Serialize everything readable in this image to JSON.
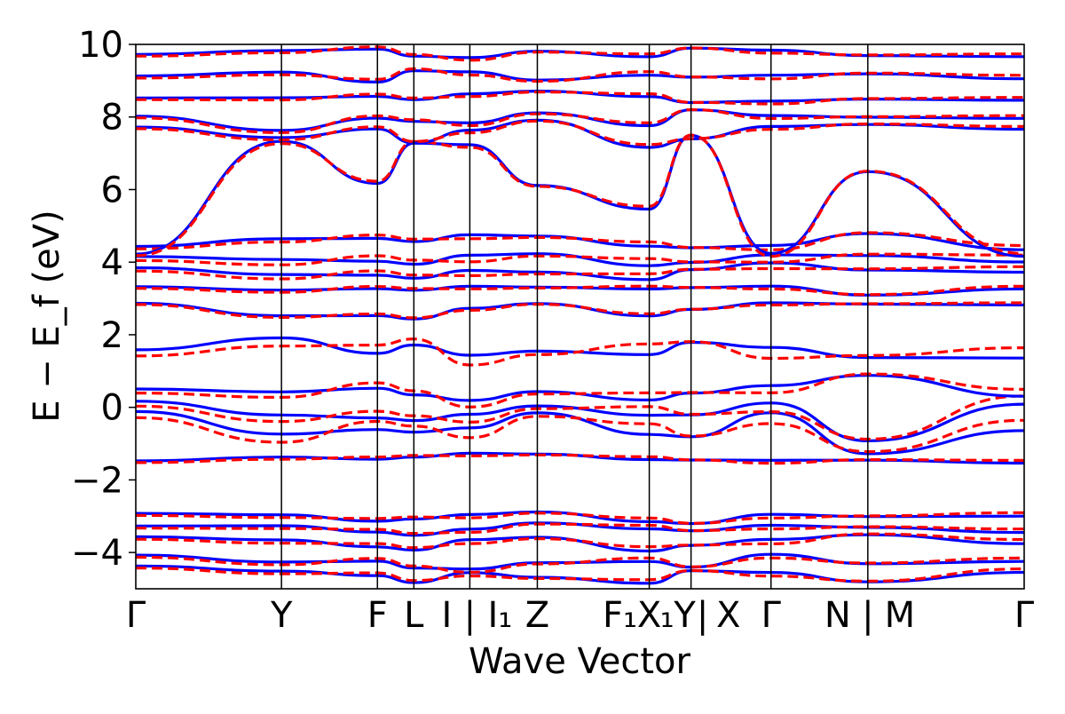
{
  "chart_data": {
    "type": "line",
    "title": "",
    "xlabel": "Wave Vector",
    "ylabel": "E − E_f (eV)",
    "ylim": [
      -5,
      10
    ],
    "yticks": [
      10,
      8,
      6,
      4,
      2,
      0,
      -2,
      -4
    ],
    "ytick_labels": [
      "10",
      "8",
      "6",
      "4",
      "2",
      "0",
      "−2",
      "−4"
    ],
    "grid": false,
    "legend": "none",
    "kpath_segment_fractions": [
      0,
      0.164,
      0.272,
      0.313,
      0.376,
      0.452,
      0.578,
      0.625,
      0.715,
      0.824,
      1.0
    ],
    "xtick_labels": [
      {
        "label": "Γ",
        "pos": 0.0
      },
      {
        "label": "Y",
        "pos": 0.164
      },
      {
        "label": "F",
        "pos": 0.272
      },
      {
        "label": "L",
        "pos": 0.313
      },
      {
        "label": "I",
        "pos": 0.35
      },
      {
        "label": "|",
        "pos": 0.376
      },
      {
        "label": "I₁",
        "pos": 0.41
      },
      {
        "label": "Z",
        "pos": 0.452
      },
      {
        "label": "F₁",
        "pos": 0.545
      },
      {
        "label": "X",
        "pos": 0.578
      },
      {
        "label": "₁",
        "pos": 0.598
      },
      {
        "label": "Y",
        "pos": 0.618
      },
      {
        "label": "|",
        "pos": 0.638
      },
      {
        "label": "X",
        "pos": 0.667
      },
      {
        "label": "Γ",
        "pos": 0.715
      },
      {
        "label": "N",
        "pos": 0.79
      },
      {
        "label": "|",
        "pos": 0.824
      },
      {
        "label": "M",
        "pos": 0.86
      },
      {
        "label": "Γ",
        "pos": 1.0
      }
    ],
    "series_styles": [
      {
        "name": "",
        "color": "#0000ff",
        "dash": "solid"
      },
      {
        "name": "",
        "color": "#ff0000",
        "dash": "dashed"
      }
    ],
    "bands": [
      {
        "profile": [
          -4.4,
          -4.55,
          -4.6,
          -4.8,
          -4.6,
          -4.7,
          -4.8,
          -4.5,
          -4.6,
          -4.8,
          -4.5
        ],
        "split": 0.05
      },
      {
        "profile": [
          -4.1,
          -4.3,
          -4.2,
          -4.4,
          -4.5,
          -4.3,
          -4.2,
          -4.4,
          -4.1,
          -4.3,
          -4.2
        ],
        "split": 0.05
      },
      {
        "profile": [
          -3.6,
          -3.7,
          -3.8,
          -3.9,
          -3.7,
          -3.6,
          -3.9,
          -3.8,
          -3.7,
          -3.5,
          -3.7
        ],
        "split": 0.06
      },
      {
        "profile": [
          -3.3,
          -3.3,
          -3.4,
          -3.5,
          -3.4,
          -3.2,
          -3.3,
          -3.4,
          -3.3,
          -3.3,
          -3.4
        ],
        "split": 0.05
      },
      {
        "profile": [
          -2.95,
          -3.0,
          -3.1,
          -3.05,
          -3.0,
          -2.9,
          -3.1,
          -3.2,
          -3.0,
          -3.0,
          -2.95
        ],
        "split": 0.05
      },
      {
        "profile": [
          -1.5,
          -1.4,
          -1.4,
          -1.35,
          -1.3,
          -1.3,
          -1.4,
          -1.45,
          -1.5,
          -1.45,
          -1.5
        ],
        "split": 0.04
      },
      {
        "profile": [
          -0.2,
          -0.85,
          -0.5,
          -0.6,
          -0.7,
          -0.2,
          -0.6,
          -0.8,
          -0.3,
          -1.25,
          -0.5
        ],
        "split": 0.15
      },
      {
        "profile": [
          0.1,
          -0.3,
          -0.2,
          -0.3,
          -0.3,
          0.0,
          -0.1,
          -0.2,
          0.0,
          -0.9,
          0.2
        ],
        "split": 0.12
      },
      {
        "profile": [
          0.45,
          0.35,
          0.6,
          0.4,
          0.1,
          0.4,
          0.3,
          0.4,
          0.5,
          0.9,
          0.4
        ],
        "split": 0.1
      },
      {
        "profile": [
          1.5,
          1.8,
          1.6,
          1.8,
          1.3,
          1.5,
          1.6,
          1.8,
          1.5,
          1.4,
          1.5
        ],
        "split": 0.15
      },
      {
        "profile": [
          2.85,
          2.5,
          2.55,
          2.45,
          2.7,
          2.85,
          2.55,
          2.7,
          2.85,
          2.85,
          2.85
        ],
        "split": 0.03
      },
      {
        "profile": [
          3.3,
          3.2,
          3.3,
          3.25,
          3.3,
          3.3,
          3.3,
          3.3,
          3.3,
          3.1,
          3.3
        ],
        "split": 0.04
      },
      {
        "profile": [
          3.8,
          3.6,
          3.7,
          3.6,
          3.7,
          3.7,
          3.6,
          3.8,
          3.9,
          3.8,
          3.8
        ],
        "split": 0.08
      },
      {
        "profile": [
          4.1,
          4.0,
          4.1,
          4.0,
          4.1,
          4.2,
          4.0,
          4.0,
          4.1,
          4.2,
          4.1
        ],
        "split": 0.1
      },
      {
        "profile": [
          4.4,
          4.6,
          4.7,
          4.6,
          4.7,
          4.7,
          4.5,
          4.4,
          4.4,
          4.8,
          4.4
        ],
        "split": 0.06
      },
      {
        "profile": [
          4.2,
          7.3,
          6.2,
          7.3,
          7.2,
          6.1,
          5.5,
          7.5,
          4.2,
          6.5,
          4.2
        ],
        "split": 0.04
      },
      {
        "profile": [
          7.7,
          7.4,
          7.7,
          7.3,
          7.6,
          7.9,
          7.2,
          7.4,
          7.7,
          7.8,
          7.7
        ],
        "split": 0.04
      },
      {
        "profile": [
          8.0,
          7.6,
          8.0,
          7.9,
          7.8,
          8.1,
          7.8,
          8.2,
          8.0,
          8.0,
          8.0
        ],
        "split": 0.04
      },
      {
        "profile": [
          8.5,
          8.5,
          8.6,
          8.5,
          8.6,
          8.7,
          8.6,
          8.4,
          8.4,
          8.5,
          8.5
        ],
        "split": 0.04
      },
      {
        "profile": [
          9.1,
          9.2,
          9.0,
          9.3,
          9.2,
          9.0,
          9.2,
          9.1,
          9.1,
          9.2,
          9.1
        ],
        "split": 0.05
      },
      {
        "profile": [
          9.7,
          9.8,
          9.9,
          9.7,
          9.6,
          9.8,
          9.7,
          9.9,
          9.8,
          9.7,
          9.7
        ],
        "split": 0.04
      }
    ]
  }
}
